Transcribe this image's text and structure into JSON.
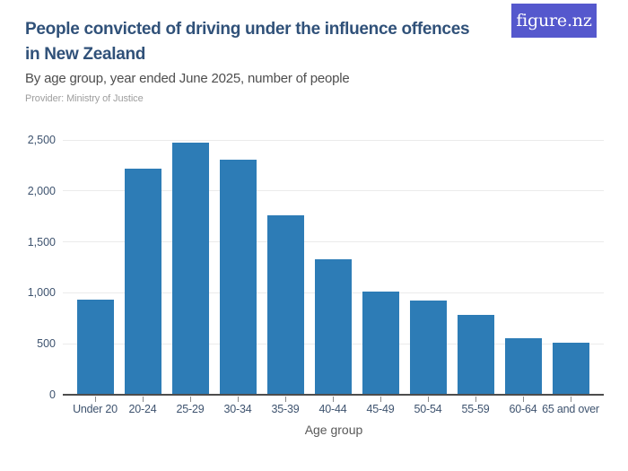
{
  "header": {
    "title": "People convicted of driving under the influence offences in New Zealand",
    "title_line1": "People convicted of driving under the influence offences",
    "title_line2": "in New Zealand",
    "subtitle": "By age group, year ended June 2025, number of people",
    "provider": "Provider: Ministry of Justice",
    "logo_text": "figure.nz"
  },
  "colors": {
    "bar": "#2d7cb6",
    "logo_bg": "#5558cd",
    "title_text": "#305179",
    "axis_tick_label": "#3e536f",
    "gridline": "#ebebeb",
    "baseline": "#4d4d4d"
  },
  "chart_data": {
    "type": "bar",
    "title": "People convicted of driving under the influence offences in New Zealand",
    "subtitle": "By age group, year ended June 2025, number of people",
    "provider": "Provider: Ministry of Justice",
    "categories": [
      "Under 20",
      "20-24",
      "25-29",
      "30-34",
      "35-39",
      "40-44",
      "45-49",
      "50-54",
      "55-59",
      "60-64",
      "65 and over"
    ],
    "values": [
      930,
      2220,
      2470,
      2310,
      1760,
      1330,
      1010,
      920,
      780,
      555,
      510
    ],
    "xlabel": "Age group",
    "ylabel": "",
    "ylim": [
      0,
      2500
    ],
    "y_tick_values": [
      0,
      500,
      1000,
      1500,
      2000,
      2500
    ],
    "y_tick_labels": [
      "0",
      "500",
      "1,000",
      "1,500",
      "2,000",
      "2,500"
    ],
    "grid": true,
    "legend": false
  }
}
